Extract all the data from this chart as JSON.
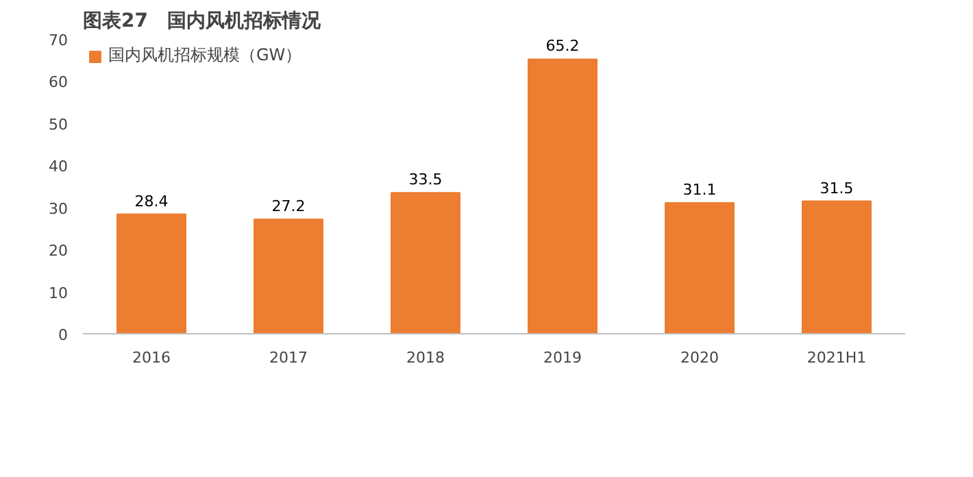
{
  "chart_data": {
    "type": "bar",
    "title": "图表27　国内风机招标情况",
    "categories": [
      "2016",
      "2017",
      "2018",
      "2019",
      "2020",
      "2021H1"
    ],
    "series": [
      {
        "name": "国内风机招标规模（GW）",
        "color": "#ed7d31",
        "values": [
          28.4,
          27.2,
          33.5,
          65.2,
          31.1,
          31.5
        ]
      }
    ],
    "ylim": [
      0,
      70
    ],
    "yticks": [
      0,
      10,
      20,
      30,
      40,
      50,
      60,
      70
    ],
    "data_labels": true,
    "grid": false,
    "legend": "top left"
  }
}
